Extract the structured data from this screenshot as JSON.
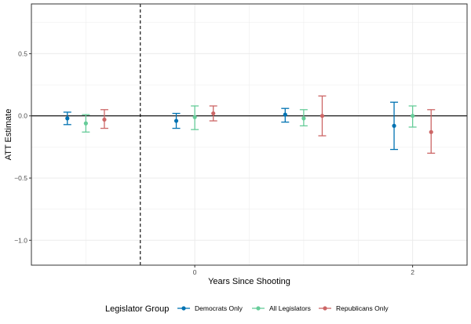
{
  "chart_data": {
    "type": "errorbar",
    "xlabel": "Years Since Shooting",
    "ylabel": "ATT Estimate",
    "xlim": [
      -1.5,
      2.5
    ],
    "ylim": [
      -1.2,
      0.9
    ],
    "y_ticks": [
      -1.0,
      -0.5,
      0.0,
      0.5
    ],
    "y_tick_labels": [
      "−1.0",
      "−0.5",
      "0.0",
      "0.5"
    ],
    "x_ticks": [
      0,
      2
    ],
    "x_tick_labels": [
      "0",
      "2"
    ],
    "vertical_reference_x": -0.5,
    "horizontal_reference_y": 0.0,
    "dodge": 0.17,
    "legend": {
      "title": "Legislator Group",
      "position": "bottom"
    },
    "series": [
      {
        "name": "Democrats Only",
        "color": "#0072B2",
        "points": [
          {
            "x": -1,
            "estimate": -0.02,
            "lower": -0.07,
            "upper": 0.03
          },
          {
            "x": 0,
            "estimate": -0.04,
            "lower": -0.1,
            "upper": 0.02
          },
          {
            "x": 1,
            "estimate": 0.01,
            "lower": -0.05,
            "upper": 0.06
          },
          {
            "x": 2,
            "estimate": -0.08,
            "lower": -0.27,
            "upper": 0.11
          }
        ]
      },
      {
        "name": "All Legislators",
        "color": "#66CC99",
        "points": [
          {
            "x": -1,
            "estimate": -0.06,
            "lower": -0.13,
            "upper": 0.01
          },
          {
            "x": 0,
            "estimate": -0.01,
            "lower": -0.11,
            "upper": 0.08
          },
          {
            "x": 1,
            "estimate": -0.02,
            "lower": -0.08,
            "upper": 0.05
          },
          {
            "x": 2,
            "estimate": 0.0,
            "lower": -0.09,
            "upper": 0.08
          }
        ]
      },
      {
        "name": "Republicans Only",
        "color": "#CC6666",
        "points": [
          {
            "x": -1,
            "estimate": -0.03,
            "lower": -0.1,
            "upper": 0.05
          },
          {
            "x": 0,
            "estimate": 0.02,
            "lower": -0.04,
            "upper": 0.08
          },
          {
            "x": 1,
            "estimate": 0.0,
            "lower": -0.16,
            "upper": 0.16
          },
          {
            "x": 2,
            "estimate": -0.13,
            "lower": -0.3,
            "upper": 0.05
          }
        ]
      }
    ]
  }
}
